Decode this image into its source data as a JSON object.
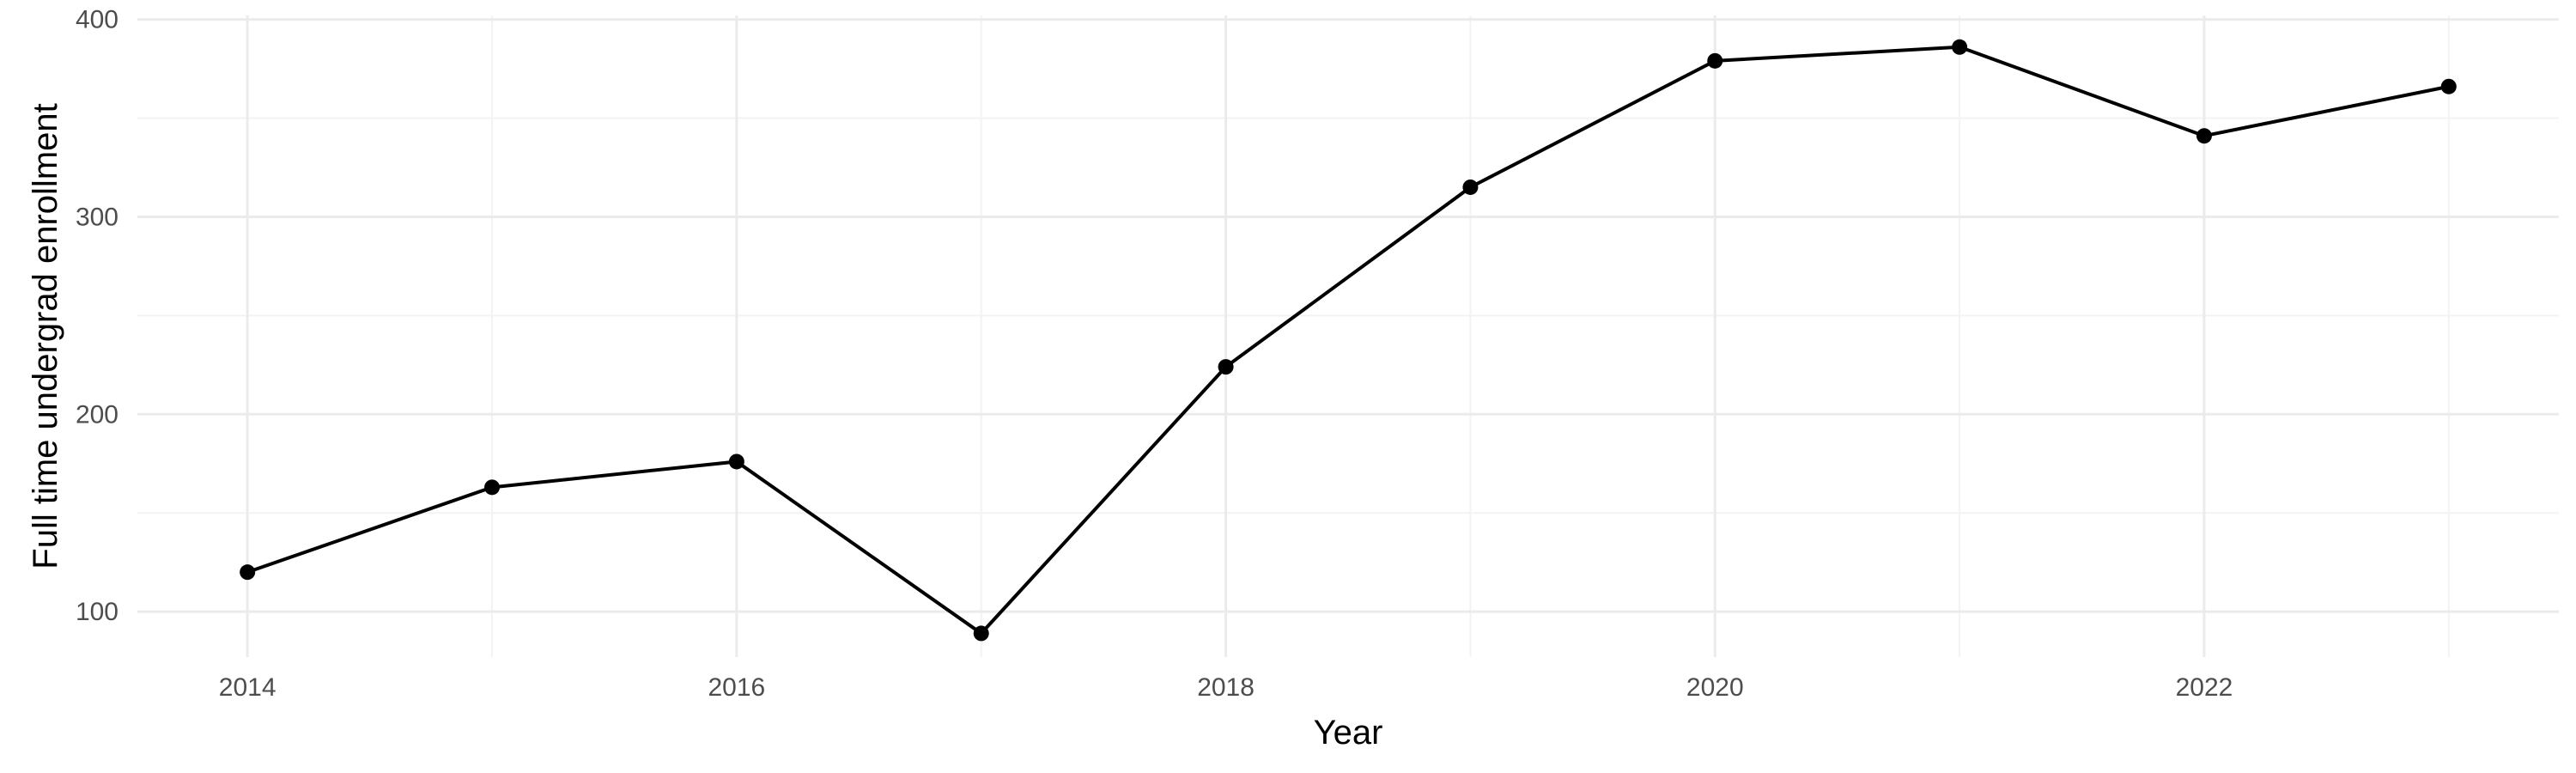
{
  "chart_data": {
    "type": "line",
    "title": "",
    "xlabel": "Year",
    "ylabel": "Full time undergrad enrollment",
    "x": [
      2014,
      2015,
      2016,
      2017,
      2018,
      2019,
      2020,
      2021,
      2022,
      2023
    ],
    "series": [
      {
        "name": "",
        "values": [
          120,
          163,
          176,
          89,
          224,
          315,
          379,
          386,
          341,
          366
        ]
      }
    ],
    "xlim": [
      2013.55,
      2023.45
    ],
    "ylim": [
      77,
      402
    ],
    "x_ticks": [
      2014,
      2016,
      2018,
      2020,
      2022
    ],
    "x_tick_labels": [
      "2014",
      "2016",
      "2018",
      "2020",
      "2022"
    ],
    "y_ticks": [
      100,
      200,
      300,
      400
    ],
    "y_tick_labels": [
      "100",
      "200",
      "300",
      "400"
    ],
    "x_minor_ticks": [
      2015,
      2017,
      2019,
      2021,
      2023
    ],
    "y_minor_ticks": [
      150,
      250,
      350
    ],
    "grid": true,
    "legend": "none",
    "colors": {
      "series": "#000000",
      "grid_major": "#ebebeb",
      "grid_minor": "#f3f3f3",
      "tick_text": "#4d4d4d",
      "background": "#ffffff"
    }
  }
}
